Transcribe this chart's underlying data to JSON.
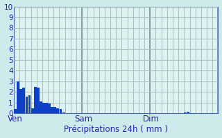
{
  "title": "Précipitations 24h ( mm )",
  "ylim": [
    0,
    10
  ],
  "yticks": [
    0,
    1,
    2,
    3,
    4,
    5,
    6,
    7,
    8,
    9,
    10
  ],
  "background_color": "#ceeaea",
  "plot_bg_color": "#dff2f2",
  "bar_color": "#1040c8",
  "grid_color": "#a8c0c0",
  "vline_color": "#7090a0",
  "bar_values": [
    0.4,
    3.0,
    2.3,
    2.4,
    1.6,
    1.7,
    0.5,
    2.5,
    2.4,
    1.1,
    1.0,
    1.0,
    0.9,
    0.6,
    0.6,
    0.5,
    0.4,
    0.1,
    0.0,
    0.0,
    0.0,
    0.0,
    0.0,
    0.0,
    0.0,
    0.0,
    0.0,
    0.0,
    0.0,
    0.0,
    0.0,
    0.0,
    0.0,
    0.0,
    0.0,
    0.0,
    0.0,
    0.0,
    0.0,
    0.0,
    0.0,
    0.0,
    0.0,
    0.0,
    0.0,
    0.0,
    0.0,
    0.0,
    0.0,
    0.0,
    0.0,
    0.0,
    0.0,
    0.0,
    0.0,
    0.0,
    0.0,
    0.0,
    0.0,
    0.0,
    0.1,
    0.15,
    0.0,
    0.0,
    0.0,
    0.0,
    0.0,
    0.0,
    0.0,
    0.0,
    0.0,
    0.0
  ],
  "n_total": 72,
  "n_per_day": 24,
  "day_labels": [
    "Ven",
    "Sam",
    "Dim"
  ],
  "day_label_offsets": [
    0,
    24,
    48
  ],
  "tick_color": "#2222aa",
  "axis_color": "#4466aa",
  "label_fontsize": 8.5,
  "tick_fontsize": 7.5,
  "ylabel_fontsize": 7.5
}
